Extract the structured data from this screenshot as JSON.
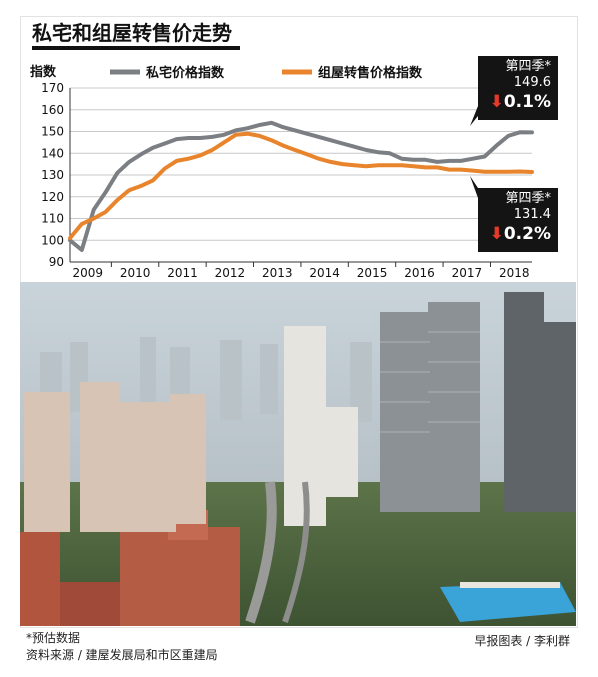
{
  "title": "私宅和组屋转售价走势",
  "footnote": {
    "estimate_note": "*预估数据",
    "source": "资料来源 / 建屋发展局和市区重建局",
    "credit": "早报图表 / 李利群"
  },
  "callouts": {
    "private": {
      "quarter": "第四季*",
      "value": "149.6",
      "change": "0.1%",
      "direction": "down"
    },
    "hdb": {
      "quarter": "第四季*",
      "value": "131.4",
      "change": "0.2%",
      "direction": "down"
    }
  },
  "colors": {
    "private": "#7b7f83",
    "hdb": "#e8842c",
    "down_arrow": "#e53a2b",
    "callout_bg": "#141414"
  },
  "chart_data": {
    "type": "line",
    "ylabel": "指数",
    "ylim": [
      90,
      170
    ],
    "yticks": [
      90,
      100,
      110,
      120,
      130,
      140,
      150,
      160,
      170
    ],
    "xlabels": [
      "2009",
      "2010",
      "2011",
      "2012",
      "2013",
      "2014",
      "2015",
      "2016",
      "2017",
      "2018"
    ],
    "x": [
      "2009Q1",
      "2009Q2",
      "2009Q3",
      "2009Q4",
      "2010Q1",
      "2010Q2",
      "2010Q3",
      "2010Q4",
      "2011Q1",
      "2011Q2",
      "2011Q3",
      "2011Q4",
      "2012Q1",
      "2012Q2",
      "2012Q3",
      "2012Q4",
      "2013Q1",
      "2013Q2",
      "2013Q3",
      "2013Q4",
      "2014Q1",
      "2014Q2",
      "2014Q3",
      "2014Q4",
      "2015Q1",
      "2015Q2",
      "2015Q3",
      "2015Q4",
      "2016Q1",
      "2016Q2",
      "2016Q3",
      "2016Q4",
      "2017Q1",
      "2017Q2",
      "2017Q3",
      "2017Q4",
      "2018Q1",
      "2018Q2",
      "2018Q3",
      "2018Q4"
    ],
    "legend_position": "top",
    "series": [
      {
        "name": "私宅价格指数",
        "values": [
          100.0,
          95.5,
          114.0,
          122.0,
          131.0,
          136.0,
          139.5,
          142.5,
          144.5,
          146.5,
          147.0,
          147.0,
          147.5,
          148.5,
          150.5,
          151.5,
          153.0,
          154.0,
          152.0,
          150.5,
          149.0,
          147.5,
          146.0,
          144.5,
          143.0,
          141.5,
          140.5,
          140.0,
          137.5,
          137.0,
          137.0,
          136.0,
          136.5,
          136.5,
          137.5,
          138.5,
          143.5,
          148.0,
          149.7,
          149.6
        ]
      },
      {
        "name": "组屋转售价格指数",
        "values": [
          101.0,
          107.5,
          110.0,
          113.0,
          118.5,
          123.0,
          125.0,
          127.5,
          133.0,
          136.5,
          137.5,
          139.0,
          141.5,
          145.0,
          148.5,
          149.0,
          148.0,
          146.0,
          143.5,
          141.5,
          139.5,
          137.5,
          136.0,
          135.0,
          134.5,
          134.0,
          134.5,
          134.5,
          134.5,
          134.0,
          133.5,
          133.5,
          132.5,
          132.5,
          132.0,
          131.5,
          131.5,
          131.5,
          131.6,
          131.4
        ]
      }
    ]
  }
}
